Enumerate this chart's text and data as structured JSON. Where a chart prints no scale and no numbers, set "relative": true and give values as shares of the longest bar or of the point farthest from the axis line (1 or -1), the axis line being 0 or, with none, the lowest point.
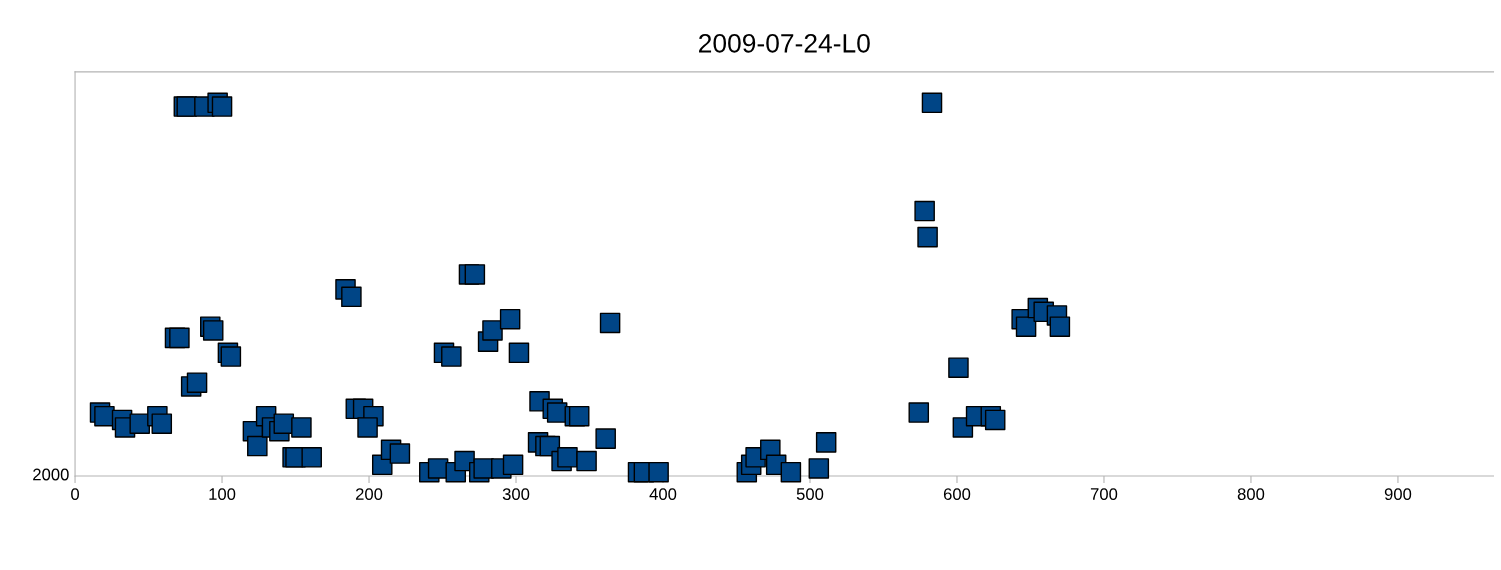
{
  "chart_data": {
    "type": "scatter",
    "title": "2009-07-24-L0",
    "relative": true,
    "marker": "square",
    "grid": false,
    "xlim": [
      0,
      965
    ],
    "xticks": [
      0,
      100,
      200,
      300,
      400,
      500,
      600,
      700,
      800,
      900
    ],
    "annotations": [
      "2000"
    ],
    "series": [
      {
        "color": "#004586",
        "x": [
          17,
          20,
          32,
          34,
          44,
          56,
          59,
          68,
          71,
          74,
          76,
          88,
          97,
          100,
          79,
          83,
          92,
          94,
          104,
          106,
          121,
          124,
          130,
          134,
          139,
          142,
          154,
          148,
          150,
          161,
          184,
          188,
          191,
          196,
          203,
          199,
          209,
          215,
          221,
          241,
          247,
          259,
          265,
          275,
          278,
          290,
          298,
          268,
          272,
          251,
          256,
          281,
          284,
          296,
          302,
          316,
          325,
          328,
          340,
          343,
          364,
          315,
          320,
          323,
          331,
          335,
          348,
          361,
          383,
          387,
          397,
          457,
          460,
          463,
          473,
          477,
          487,
          506,
          511,
          574,
          578,
          580,
          583,
          601,
          604,
          613,
          623,
          626,
          644,
          647,
          655,
          659,
          668,
          670
        ],
        "values": [
          0.17,
          0.16,
          0.15,
          0.13,
          0.14,
          0.16,
          0.14,
          0.37,
          0.37,
          0.99,
          0.99,
          0.99,
          1.0,
          0.99,
          0.24,
          0.25,
          0.4,
          0.39,
          0.33,
          0.32,
          0.12,
          0.08,
          0.16,
          0.13,
          0.12,
          0.14,
          0.13,
          0.05,
          0.05,
          0.05,
          0.5,
          0.48,
          0.18,
          0.18,
          0.16,
          0.13,
          0.03,
          0.07,
          0.06,
          0.01,
          0.02,
          0.01,
          0.04,
          0.01,
          0.02,
          0.02,
          0.03,
          0.54,
          0.54,
          0.33,
          0.32,
          0.36,
          0.39,
          0.42,
          0.33,
          0.2,
          0.18,
          0.17,
          0.16,
          0.16,
          0.41,
          0.09,
          0.08,
          0.08,
          0.04,
          0.05,
          0.04,
          0.1,
          0.01,
          0.01,
          0.01,
          0.01,
          0.03,
          0.05,
          0.07,
          0.03,
          0.01,
          0.02,
          0.09,
          0.17,
          0.71,
          0.64,
          1.0,
          0.29,
          0.13,
          0.16,
          0.16,
          0.15,
          0.42,
          0.4,
          0.45,
          0.44,
          0.43,
          0.4
        ]
      }
    ]
  }
}
